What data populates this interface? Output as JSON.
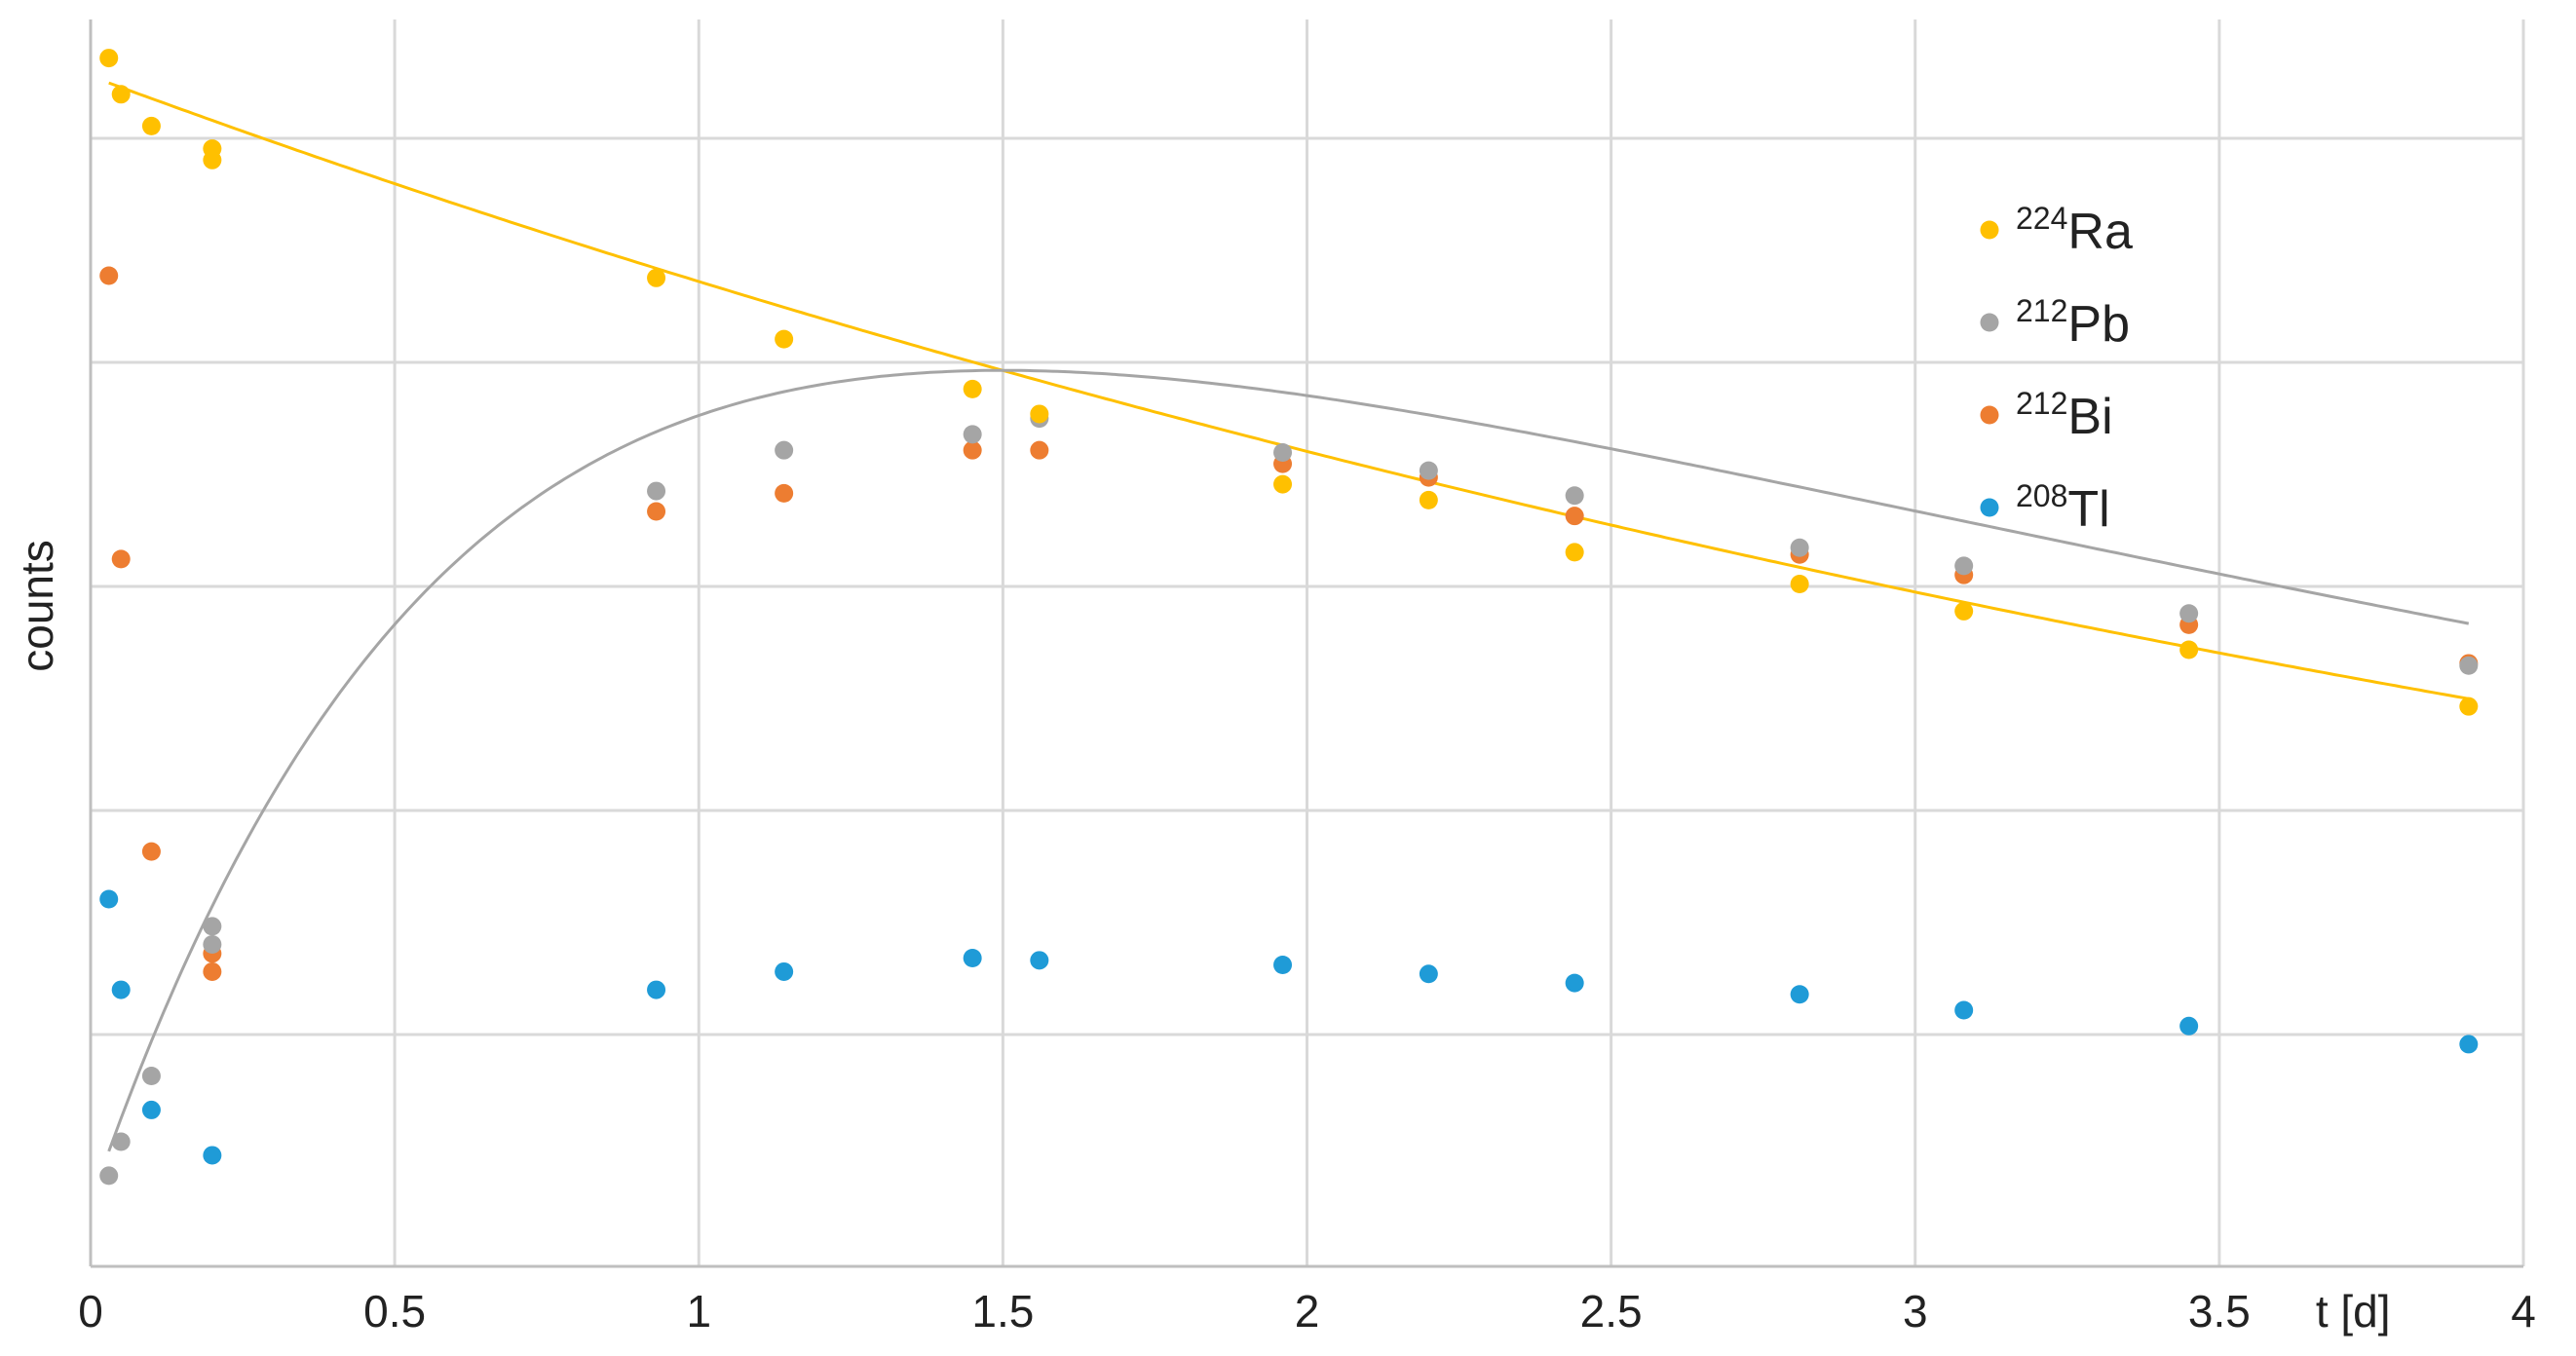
{
  "chart_data": {
    "type": "scatter",
    "title": "",
    "xlabel": "t [d]",
    "ylabel": "counts",
    "xlim": [
      0,
      4
    ],
    "ylim": [
      0,
      5.5
    ],
    "x_ticks": [
      "0",
      "0.5",
      "1",
      "1.5",
      "2",
      "2.5",
      "3",
      "3.5",
      "4"
    ],
    "y_ticks_labeled": false,
    "grid": true,
    "legend_position": "top-right",
    "series": [
      {
        "name": "Ra",
        "mass_number": "224",
        "color": "#FFC000",
        "points": [
          [
            0.03,
            5.33
          ],
          [
            0.05,
            5.17
          ],
          [
            0.1,
            5.03
          ],
          [
            0.2,
            4.93
          ],
          [
            0.2,
            4.88
          ],
          [
            0.93,
            4.36
          ],
          [
            1.14,
            4.09
          ],
          [
            1.45,
            3.87
          ],
          [
            1.56,
            3.76
          ],
          [
            1.96,
            3.45
          ],
          [
            2.2,
            3.38
          ],
          [
            2.44,
            3.15
          ],
          [
            2.81,
            3.01
          ],
          [
            3.08,
            2.89
          ],
          [
            3.45,
            2.72
          ],
          [
            3.91,
            2.47
          ]
        ],
        "fit": "exponential decay"
      },
      {
        "name": "Pb",
        "mass_number": "212",
        "color": "#A5A5A5",
        "points": [
          [
            0.03,
            0.4
          ],
          [
            0.05,
            0.55
          ],
          [
            0.1,
            0.84
          ],
          [
            0.2,
            1.42
          ],
          [
            0.2,
            1.5
          ],
          [
            0.93,
            3.42
          ],
          [
            1.14,
            3.6
          ],
          [
            1.45,
            3.67
          ],
          [
            1.56,
            3.74
          ],
          [
            1.96,
            3.59
          ],
          [
            2.2,
            3.51
          ],
          [
            2.44,
            3.4
          ],
          [
            2.81,
            3.17
          ],
          [
            3.08,
            3.09
          ],
          [
            3.45,
            2.88
          ],
          [
            3.91,
            2.65
          ]
        ],
        "fit": "ingrowth and decay"
      },
      {
        "name": "Bi",
        "mass_number": "212",
        "color": "#ED7D31",
        "points": [
          [
            0.03,
            4.37
          ],
          [
            0.05,
            3.12
          ],
          [
            0.1,
            1.83
          ],
          [
            0.2,
            1.3
          ],
          [
            0.2,
            1.38
          ],
          [
            0.93,
            3.33
          ],
          [
            1.14,
            3.41
          ],
          [
            1.45,
            3.6
          ],
          [
            1.56,
            3.6
          ],
          [
            1.96,
            3.54
          ],
          [
            2.2,
            3.48
          ],
          [
            2.44,
            3.31
          ],
          [
            2.81,
            3.14
          ],
          [
            3.08,
            3.05
          ],
          [
            3.45,
            2.83
          ],
          [
            3.91,
            2.66
          ]
        ]
      },
      {
        "name": "Tl",
        "mass_number": "208",
        "color": "#1F9BD7",
        "points": [
          [
            0.03,
            1.62
          ],
          [
            0.05,
            1.22
          ],
          [
            0.1,
            0.69
          ],
          [
            0.2,
            0.49
          ],
          [
            0.93,
            1.22
          ],
          [
            1.14,
            1.3
          ],
          [
            1.45,
            1.36
          ],
          [
            1.56,
            1.35
          ],
          [
            1.96,
            1.33
          ],
          [
            2.2,
            1.29
          ],
          [
            2.44,
            1.25
          ],
          [
            2.81,
            1.2
          ],
          [
            3.08,
            1.13
          ],
          [
            3.45,
            1.06
          ],
          [
            3.91,
            0.98
          ]
        ]
      }
    ]
  }
}
